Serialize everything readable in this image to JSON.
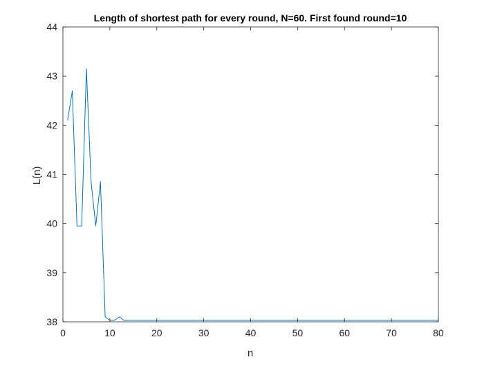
{
  "chart_data": {
    "type": "line",
    "title": "Length of shortest path for every round, N=60. First found round=10",
    "xlabel": "n",
    "ylabel": "L(n)",
    "xlim": [
      0,
      80
    ],
    "ylim": [
      38,
      44
    ],
    "xticks": [
      0,
      10,
      20,
      30,
      40,
      50,
      60,
      70,
      80
    ],
    "yticks": [
      38,
      39,
      40,
      41,
      42,
      43,
      44
    ],
    "grid": false,
    "legend": "none",
    "line_color": "#0072BD",
    "series": [
      {
        "x": [
          1,
          2,
          3,
          4,
          5,
          6,
          7,
          8,
          9,
          10,
          11,
          12,
          13,
          14,
          15,
          16,
          17,
          18,
          19,
          20,
          21,
          22,
          23,
          24,
          25,
          26,
          27,
          28,
          29,
          30,
          31,
          32,
          33,
          34,
          35,
          36,
          37,
          38,
          39,
          40,
          41,
          42,
          43,
          44,
          45,
          46,
          47,
          48,
          49,
          50,
          51,
          52,
          53,
          54,
          55,
          56,
          57,
          58,
          59,
          60,
          61,
          62,
          63,
          64,
          65,
          66,
          67,
          68,
          69,
          70,
          71,
          72,
          73,
          74,
          75,
          76,
          77,
          78,
          79,
          80
        ],
        "values": [
          42.1,
          42.7,
          39.95,
          39.95,
          43.15,
          40.85,
          39.95,
          40.85,
          38.1,
          38.03,
          38.03,
          38.1,
          38.03,
          38.03,
          38.03,
          38.03,
          38.03,
          38.03,
          38.03,
          38.03,
          38.03,
          38.03,
          38.03,
          38.03,
          38.03,
          38.03,
          38.03,
          38.03,
          38.03,
          38.03,
          38.03,
          38.03,
          38.03,
          38.03,
          38.03,
          38.03,
          38.03,
          38.03,
          38.03,
          38.03,
          38.03,
          38.03,
          38.03,
          38.03,
          38.03,
          38.03,
          38.03,
          38.03,
          38.03,
          38.03,
          38.03,
          38.03,
          38.03,
          38.03,
          38.03,
          38.03,
          38.03,
          38.03,
          38.03,
          38.03,
          38.03,
          38.03,
          38.03,
          38.03,
          38.03,
          38.03,
          38.03,
          38.03,
          38.03,
          38.03,
          38.03,
          38.03,
          38.03,
          38.03,
          38.03,
          38.03,
          38.03,
          38.03,
          38.03,
          38.03
        ]
      }
    ]
  }
}
